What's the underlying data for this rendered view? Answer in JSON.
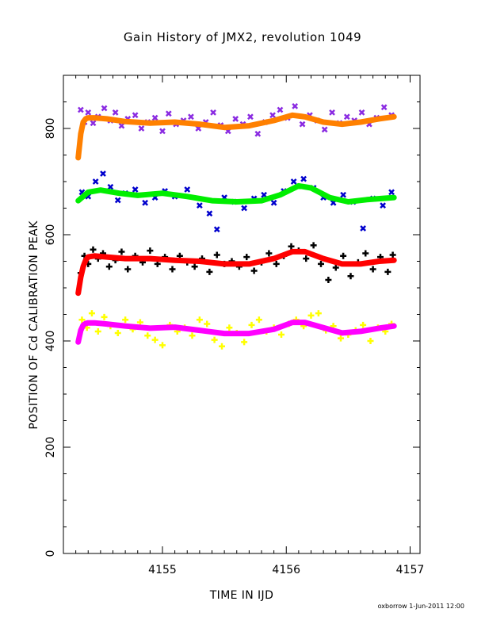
{
  "chart_data": {
    "type": "scatter",
    "title": "Gain History of JMX2, revolution 1049",
    "xlabel": "TIME IN IJD",
    "ylabel": "POSITION OF Cd CALIBRATION PEAK",
    "xlim": [
      4154.2,
      4157.08
    ],
    "ylim": [
      0,
      900
    ],
    "x_ticks": [
      4155,
      4156,
      4157
    ],
    "y_ticks": [
      0,
      200,
      400,
      600,
      800
    ],
    "grid": false,
    "footer": "oxborrow   1-Jun-2011  12:00",
    "series": [
      {
        "kind": "scatter",
        "color": "#8a2be2",
        "marker": "x",
        "x": [
          4154.34,
          4154.37,
          4154.4,
          4154.44,
          4154.48,
          4154.53,
          4154.58,
          4154.62,
          4154.67,
          4154.72,
          4154.78,
          4154.83,
          4154.88,
          4154.94,
          4155.0,
          4155.05,
          4155.11,
          4155.17,
          4155.23,
          4155.29,
          4155.35,
          4155.41,
          4155.47,
          4155.53,
          4155.59,
          4155.65,
          4155.71,
          4155.77,
          4155.83,
          4155.89,
          4155.95,
          4156.01,
          4156.07,
          4156.13,
          4156.19,
          4156.25,
          4156.31,
          4156.37,
          4156.43,
          4156.49,
          4156.55,
          4156.61,
          4156.67,
          4156.73,
          4156.79,
          4156.85
        ],
        "y": [
          835,
          812,
          830,
          810,
          822,
          838,
          815,
          830,
          805,
          818,
          825,
          800,
          812,
          820,
          795,
          828,
          808,
          815,
          822,
          800,
          812,
          830,
          806,
          795,
          818,
          808,
          822,
          790,
          812,
          825,
          835,
          820,
          842,
          808,
          825,
          815,
          798,
          830,
          810,
          822,
          815,
          830,
          808,
          820,
          840,
          825
        ]
      },
      {
        "kind": "line",
        "color": "#ff8000",
        "x": [
          4154.32,
          4154.34,
          4154.36,
          4154.38,
          4154.4,
          4154.45,
          4154.55,
          4154.7,
          4154.9,
          4155.1,
          4155.3,
          4155.5,
          4155.7,
          4155.9,
          4156.05,
          4156.15,
          4156.3,
          4156.45,
          4156.6,
          4156.75,
          4156.87
        ],
        "y": [
          745,
          790,
          812,
          818,
          820,
          820,
          818,
          813,
          810,
          812,
          808,
          802,
          805,
          815,
          825,
          822,
          812,
          808,
          812,
          818,
          822
        ]
      },
      {
        "kind": "scatter",
        "color": "#0000cd",
        "marker": "x",
        "x": [
          4154.35,
          4154.4,
          4154.46,
          4154.52,
          4154.58,
          4154.64,
          4154.7,
          4154.78,
          4154.86,
          4154.94,
          4155.02,
          4155.1,
          4155.2,
          4155.3,
          4155.38,
          4155.44,
          4155.5,
          4155.58,
          4155.66,
          4155.74,
          4155.82,
          4155.9,
          4155.98,
          4156.06,
          4156.14,
          4156.22,
          4156.3,
          4156.38,
          4156.46,
          4156.54,
          4156.62,
          4156.7,
          4156.78,
          4156.85
        ],
        "y": [
          680,
          672,
          700,
          715,
          690,
          665,
          678,
          685,
          660,
          670,
          682,
          672,
          685,
          655,
          640,
          610,
          670,
          662,
          650,
          668,
          675,
          660,
          682,
          700,
          705,
          688,
          670,
          660,
          675,
          662,
          612,
          668,
          655,
          680
        ]
      },
      {
        "kind": "line",
        "color": "#00ee00",
        "x": [
          4154.32,
          4154.4,
          4154.5,
          4154.65,
          4154.8,
          4155.0,
          4155.2,
          4155.4,
          4155.6,
          4155.8,
          4155.95,
          4156.1,
          4156.2,
          4156.35,
          4156.5,
          4156.65,
          4156.87
        ],
        "y": [
          664,
          680,
          684,
          678,
          674,
          678,
          672,
          664,
          662,
          664,
          675,
          692,
          688,
          670,
          662,
          666,
          670
        ]
      },
      {
        "kind": "scatter",
        "color": "#000000",
        "marker": "+",
        "x": [
          4154.34,
          4154.37,
          4154.4,
          4154.44,
          4154.48,
          4154.52,
          4154.57,
          4154.62,
          4154.67,
          4154.72,
          4154.78,
          4154.84,
          4154.9,
          4154.96,
          4155.02,
          4155.08,
          4155.14,
          4155.2,
          4155.26,
          4155.32,
          4155.38,
          4155.44,
          4155.5,
          4155.56,
          4155.62,
          4155.68,
          4155.74,
          4155.8,
          4155.86,
          4155.92,
          4155.98,
          4156.04,
          4156.1,
          4156.16,
          4156.22,
          4156.28,
          4156.34,
          4156.4,
          4156.46,
          4156.52,
          4156.58,
          4156.64,
          4156.7,
          4156.76,
          4156.82,
          4156.86
        ],
        "y": [
          528,
          560,
          545,
          572,
          555,
          565,
          540,
          552,
          568,
          535,
          560,
          548,
          570,
          545,
          558,
          535,
          560,
          548,
          540,
          555,
          530,
          562,
          545,
          550,
          540,
          558,
          532,
          548,
          565,
          545,
          560,
          578,
          570,
          555,
          580,
          545,
          515,
          538,
          560,
          522,
          548,
          565,
          535,
          558,
          530,
          562
        ]
      },
      {
        "kind": "line",
        "color": "#ff0000",
        "x": [
          4154.32,
          4154.34,
          4154.36,
          4154.38,
          4154.4,
          4154.45,
          4154.55,
          4154.7,
          4154.9,
          4155.1,
          4155.3,
          4155.5,
          4155.7,
          4155.9,
          4156.05,
          4156.15,
          4156.3,
          4156.45,
          4156.6,
          4156.75,
          4156.87
        ],
        "y": [
          490,
          520,
          540,
          552,
          558,
          560,
          558,
          555,
          555,
          552,
          550,
          545,
          545,
          555,
          568,
          568,
          555,
          545,
          545,
          550,
          552
        ]
      },
      {
        "kind": "scatter",
        "color": "#ffff00",
        "marker": "+",
        "x": [
          4154.35,
          4154.39,
          4154.43,
          4154.48,
          4154.53,
          4154.58,
          4154.64,
          4154.7,
          4154.76,
          4154.82,
          4154.88,
          4154.94,
          4155.0,
          4155.06,
          4155.12,
          4155.18,
          4155.24,
          4155.3,
          4155.36,
          4155.42,
          4155.48,
          4155.54,
          4155.6,
          4155.66,
          4155.72,
          4155.78,
          4155.84,
          4155.9,
          4155.96,
          4156.02,
          4156.08,
          4156.14,
          4156.2,
          4156.26,
          4156.32,
          4156.38,
          4156.44,
          4156.5,
          4156.56,
          4156.62,
          4156.68,
          4156.74,
          4156.8,
          4156.85
        ],
        "y": [
          440,
          425,
          452,
          418,
          445,
          428,
          415,
          440,
          422,
          435,
          410,
          402,
          392,
          430,
          418,
          425,
          410,
          440,
          432,
          402,
          390,
          425,
          415,
          398,
          430,
          440,
          418,
          425,
          412,
          432,
          440,
          428,
          448,
          452,
          420,
          428,
          405,
          412,
          420,
          430,
          400,
          425,
          418,
          432
        ]
      },
      {
        "kind": "line",
        "color": "#ff00ff",
        "x": [
          4154.32,
          4154.34,
          4154.36,
          4154.38,
          4154.4,
          4154.45,
          4154.55,
          4154.7,
          4154.9,
          4155.1,
          4155.3,
          4155.5,
          4155.7,
          4155.9,
          4156.05,
          4156.15,
          4156.3,
          4156.45,
          4156.6,
          4156.75,
          4156.87
        ],
        "y": [
          398,
          420,
          430,
          433,
          434,
          434,
          432,
          428,
          424,
          426,
          420,
          414,
          414,
          422,
          435,
          435,
          425,
          415,
          418,
          424,
          428
        ]
      }
    ]
  }
}
